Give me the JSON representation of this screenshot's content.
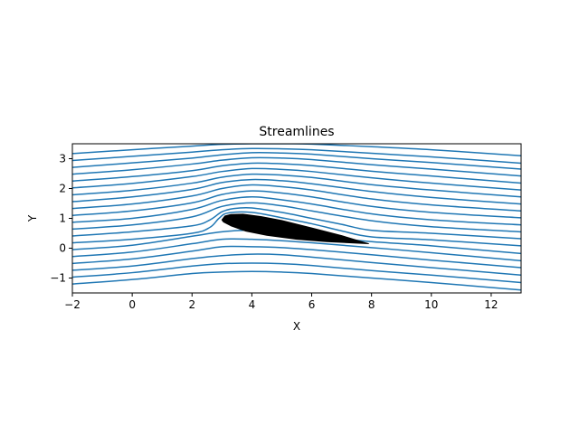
{
  "chart_data": {
    "type": "line",
    "title": "Streamlines",
    "xlabel": "X",
    "ylabel": "Y",
    "xlim": [
      -2,
      13
    ],
    "ylim": [
      -1.5,
      3.5
    ],
    "xticks": [
      -2,
      0,
      2,
      4,
      6,
      8,
      10,
      12
    ],
    "xtick_labels": [
      "−2",
      "0",
      "2",
      "4",
      "6",
      "8",
      "10",
      "12"
    ],
    "yticks": [
      -1,
      0,
      1,
      2,
      3
    ],
    "ytick_labels": [
      "−1",
      "0",
      "1",
      "2",
      "3"
    ],
    "grid": false,
    "legend": "none",
    "line_color": "#1f77b4",
    "body_color": "#000000",
    "streamline_start_y": [
      -1.2,
      -0.97,
      -0.74,
      -0.51,
      -0.28,
      -0.05,
      0.18,
      0.41,
      0.64,
      0.87,
      1.1,
      1.33,
      1.56,
      1.79,
      2.02,
      2.25,
      2.48,
      2.71,
      2.94,
      3.17
    ],
    "series": [
      {
        "x": [
          -2,
          0,
          2,
          3,
          4,
          5,
          6,
          8,
          10,
          13
        ],
        "y": [
          -1.2,
          -1.05,
          -0.85,
          -0.8,
          -0.78,
          -0.8,
          -0.85,
          -1.0,
          -1.15,
          -1.4
        ]
      },
      {
        "x": [
          -2,
          0,
          2,
          3,
          4,
          5,
          6,
          8,
          10,
          13
        ],
        "y": [
          -0.97,
          -0.82,
          -0.6,
          -0.52,
          -0.5,
          -0.52,
          -0.58,
          -0.75,
          -0.9,
          -1.15
        ]
      },
      {
        "x": [
          -2,
          0,
          2,
          3,
          4,
          5,
          6,
          8,
          10,
          13
        ],
        "y": [
          -0.74,
          -0.6,
          -0.35,
          -0.25,
          -0.2,
          -0.22,
          -0.3,
          -0.48,
          -0.65,
          -0.9
        ]
      },
      {
        "x": [
          -2,
          0,
          2,
          3,
          4,
          5,
          6,
          8,
          10,
          13
        ],
        "y": [
          -0.51,
          -0.36,
          -0.1,
          0.05,
          0.05,
          0.02,
          -0.05,
          -0.22,
          -0.4,
          -0.65
        ]
      },
      {
        "x": [
          -2,
          0,
          2,
          3,
          4,
          5,
          6,
          8,
          10,
          13
        ],
        "y": [
          -0.28,
          -0.13,
          0.15,
          0.3,
          0.3,
          0.25,
          0.18,
          0.02,
          -0.15,
          -0.42
        ]
      },
      {
        "x": [
          -2,
          0,
          2,
          3,
          4,
          5,
          6,
          8,
          10,
          13
        ],
        "y": [
          -0.05,
          0.1,
          0.4,
          0.55,
          0.6,
          0.5,
          0.4,
          0.22,
          0.08,
          -0.18
        ]
      },
      {
        "x": [
          -2,
          0,
          2,
          2.6,
          2.9,
          3.2,
          4,
          5,
          6,
          7,
          8,
          10,
          13
        ],
        "y": [
          0.18,
          0.3,
          0.5,
          0.7,
          1.0,
          1.18,
          1.2,
          1.02,
          0.82,
          0.58,
          0.38,
          0.28,
          0.08
        ]
      },
      {
        "x": [
          -2,
          0,
          2,
          2.6,
          3.0,
          3.4,
          4,
          5,
          6,
          7,
          8,
          10,
          13
        ],
        "y": [
          0.41,
          0.55,
          0.75,
          0.95,
          1.22,
          1.33,
          1.35,
          1.2,
          1.0,
          0.8,
          0.6,
          0.5,
          0.32
        ]
      },
      {
        "x": [
          -2,
          0,
          2,
          3,
          4,
          5,
          6,
          8,
          10,
          13
        ],
        "y": [
          0.64,
          0.78,
          1.05,
          1.4,
          1.52,
          1.42,
          1.25,
          0.92,
          0.72,
          0.55
        ]
      },
      {
        "x": [
          -2,
          0,
          2,
          3,
          4,
          5,
          6,
          8,
          10,
          13
        ],
        "y": [
          0.87,
          1.0,
          1.3,
          1.6,
          1.72,
          1.62,
          1.48,
          1.15,
          0.95,
          0.78
        ]
      },
      {
        "x": [
          -2,
          0,
          2,
          3,
          4,
          5,
          6,
          8,
          10,
          13
        ],
        "y": [
          1.1,
          1.25,
          1.52,
          1.8,
          1.92,
          1.85,
          1.72,
          1.4,
          1.2,
          1.02
        ]
      },
      {
        "x": [
          -2,
          0,
          2,
          3,
          4,
          5,
          6,
          8,
          10,
          13
        ],
        "y": [
          1.33,
          1.48,
          1.75,
          2.0,
          2.12,
          2.06,
          1.95,
          1.65,
          1.45,
          1.25
        ]
      },
      {
        "x": [
          -2,
          0,
          2,
          3,
          4,
          5,
          6,
          8,
          10,
          13
        ],
        "y": [
          1.56,
          1.72,
          1.97,
          2.2,
          2.3,
          2.26,
          2.16,
          1.9,
          1.7,
          1.48
        ]
      },
      {
        "x": [
          -2,
          0,
          2,
          3,
          4,
          5,
          6,
          8,
          10,
          13
        ],
        "y": [
          1.79,
          1.94,
          2.18,
          2.38,
          2.48,
          2.45,
          2.37,
          2.13,
          1.95,
          1.72
        ]
      },
      {
        "x": [
          -2,
          0,
          2,
          3,
          4,
          5,
          6,
          8,
          10,
          13
        ],
        "y": [
          2.02,
          2.17,
          2.4,
          2.57,
          2.67,
          2.64,
          2.57,
          2.36,
          2.18,
          1.95
        ]
      },
      {
        "x": [
          -2,
          0,
          2,
          3,
          4,
          5,
          6,
          8,
          10,
          13
        ],
        "y": [
          2.25,
          2.4,
          2.6,
          2.76,
          2.85,
          2.83,
          2.77,
          2.58,
          2.42,
          2.18
        ]
      },
      {
        "x": [
          -2,
          0,
          2,
          3,
          4,
          5,
          6,
          8,
          10,
          13
        ],
        "y": [
          2.48,
          2.63,
          2.82,
          2.95,
          3.03,
          3.02,
          2.97,
          2.8,
          2.65,
          2.42
        ]
      },
      {
        "x": [
          -2,
          0,
          2,
          3,
          4,
          5,
          6,
          8,
          10,
          13
        ],
        "y": [
          2.71,
          2.86,
          3.02,
          3.13,
          3.2,
          3.19,
          3.15,
          3.0,
          2.87,
          2.65
        ]
      },
      {
        "x": [
          -2,
          0,
          2,
          3,
          4,
          5,
          6,
          8,
          10,
          13
        ],
        "y": [
          2.94,
          3.08,
          3.22,
          3.3,
          3.34,
          3.33,
          3.3,
          3.18,
          3.06,
          2.85
        ]
      },
      {
        "x": [
          -2,
          0,
          2,
          3,
          4,
          5,
          6,
          8,
          10,
          13
        ],
        "y": [
          3.17,
          3.3,
          3.42,
          3.48,
          3.5,
          3.5,
          3.49,
          3.4,
          3.3,
          3.1
        ]
      }
    ],
    "airfoil": {
      "x": [
        3.0,
        3.1,
        3.3,
        3.7,
        4.3,
        5.0,
        6.0,
        7.0,
        7.9,
        6.5,
        5.5,
        4.5,
        3.8,
        3.3,
        3.05
      ],
      "y": [
        0.95,
        1.08,
        1.13,
        1.14,
        1.06,
        0.93,
        0.68,
        0.42,
        0.15,
        0.22,
        0.3,
        0.43,
        0.57,
        0.75,
        0.88
      ]
    }
  }
}
